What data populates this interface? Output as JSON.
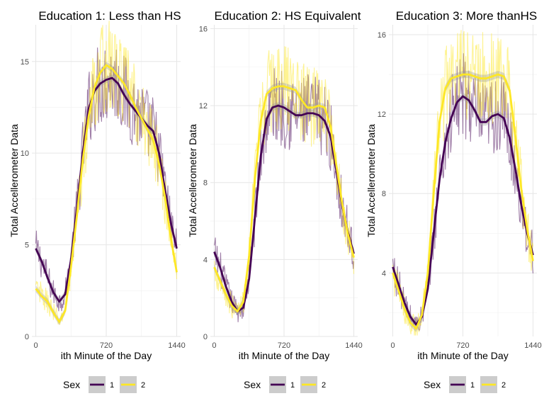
{
  "chart_data": [
    {
      "type": "line",
      "title": "Education 1: Less than HS",
      "xlabel": "ith Minute of the Day",
      "ylabel": "Total Accellerometer Data",
      "x_ticks": [
        0,
        720,
        1440
      ],
      "y_ticks": [
        0,
        5,
        10,
        15
      ],
      "xlim": [
        -40,
        1480
      ],
      "ylim": [
        0,
        17
      ],
      "grid": true,
      "smooth_x": [
        0,
        60,
        120,
        180,
        240,
        300,
        360,
        420,
        480,
        540,
        600,
        660,
        720,
        780,
        840,
        900,
        960,
        1020,
        1080,
        1140,
        1200,
        1260,
        1320,
        1380,
        1440
      ],
      "series": [
        {
          "name": "1",
          "color": "#440154",
          "smooth": [
            4.8,
            4.1,
            3.2,
            2.4,
            1.9,
            2.3,
            4.2,
            7.0,
            10.0,
            12.4,
            13.4,
            13.8,
            14.0,
            14.1,
            13.8,
            13.2,
            12.7,
            12.3,
            11.9,
            11.5,
            11.2,
            10.0,
            8.0,
            6.2,
            4.8
          ]
        },
        {
          "name": "2",
          "color": "#FDE725",
          "smooth": [
            2.6,
            2.2,
            1.9,
            1.3,
            0.8,
            1.4,
            3.8,
            6.6,
            9.6,
            12.0,
            13.6,
            14.4,
            14.8,
            14.6,
            14.2,
            13.8,
            13.2,
            12.5,
            11.9,
            11.3,
            10.7,
            9.4,
            7.6,
            5.4,
            3.5
          ]
        }
      ]
    },
    {
      "type": "line",
      "title": "Education 2: HS Equivalent",
      "xlabel": "ith Minute of the Day",
      "ylabel": "Total Accellerometer Data",
      "x_ticks": [
        0,
        720,
        1440
      ],
      "y_ticks": [
        0,
        4,
        8,
        12,
        16
      ],
      "xlim": [
        -40,
        1480
      ],
      "ylim": [
        0,
        16.2
      ],
      "grid": true,
      "smooth_x": [
        0,
        60,
        120,
        180,
        240,
        300,
        360,
        420,
        480,
        540,
        600,
        660,
        720,
        780,
        840,
        900,
        960,
        1020,
        1080,
        1140,
        1200,
        1260,
        1320,
        1380,
        1440
      ],
      "series": [
        {
          "name": "1",
          "color": "#440154",
          "smooth": [
            4.4,
            3.6,
            2.6,
            1.8,
            1.3,
            1.5,
            3.0,
            6.2,
            9.4,
            11.3,
            11.9,
            12.0,
            11.9,
            11.7,
            11.5,
            11.5,
            11.6,
            11.6,
            11.5,
            11.2,
            10.4,
            8.6,
            6.8,
            5.4,
            4.3
          ]
        },
        {
          "name": "2",
          "color": "#FDE725",
          "smooth": [
            3.6,
            2.9,
            2.2,
            1.6,
            1.3,
            1.8,
            4.2,
            8.2,
            11.2,
            12.6,
            12.9,
            13.0,
            13.0,
            12.9,
            12.8,
            12.3,
            11.9,
            11.9,
            12.0,
            11.9,
            10.9,
            8.9,
            6.9,
            5.3,
            4.1
          ]
        }
      ]
    },
    {
      "type": "line",
      "title": "Education 3: More thanHS",
      "xlabel": "ith Minute of the Day",
      "ylabel": "Total Accellerometer Data",
      "x_ticks": [
        0,
        720,
        1440
      ],
      "y_ticks": [
        4,
        8,
        12,
        16
      ],
      "xlim": [
        -40,
        1480
      ],
      "ylim": [
        0.8,
        16.5
      ],
      "grid": true,
      "smooth_x": [
        0,
        60,
        120,
        180,
        240,
        300,
        360,
        420,
        480,
        540,
        600,
        660,
        720,
        780,
        840,
        900,
        960,
        1020,
        1080,
        1140,
        1200,
        1260,
        1320,
        1380,
        1440
      ],
      "series": [
        {
          "name": "1",
          "color": "#440154",
          "smooth": [
            4.3,
            3.4,
            2.5,
            1.8,
            1.4,
            1.8,
            3.2,
            6.0,
            8.7,
            10.6,
            11.8,
            12.6,
            12.9,
            12.7,
            12.2,
            11.6,
            11.6,
            11.9,
            12.0,
            11.8,
            10.8,
            9.2,
            7.4,
            6.0,
            4.9
          ]
        },
        {
          "name": "2",
          "color": "#FDE725",
          "smooth": [
            4.0,
            3.1,
            2.2,
            1.5,
            1.2,
            1.9,
            4.0,
            8.0,
            11.6,
            13.3,
            13.8,
            13.9,
            14.0,
            14.0,
            13.9,
            13.8,
            13.8,
            13.9,
            14.0,
            13.9,
            13.2,
            10.8,
            8.2,
            6.2,
            4.6
          ]
        }
      ]
    }
  ],
  "legend": {
    "title": "Sex",
    "entries": [
      {
        "label": "1",
        "color": "#440154"
      },
      {
        "label": "2",
        "color": "#FDE725"
      }
    ]
  }
}
